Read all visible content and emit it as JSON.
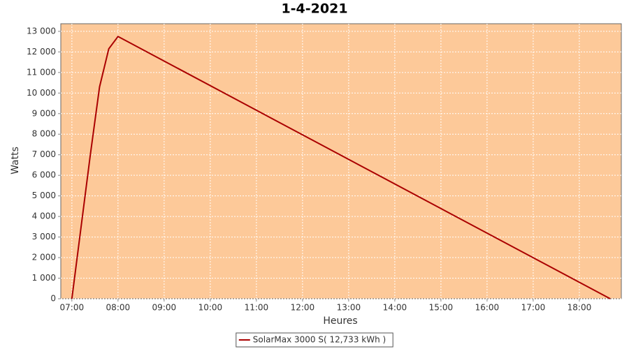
{
  "chart_data": {
    "type": "line",
    "title": "1-4-2021",
    "x_label": "Heures",
    "y_label": "Watts",
    "x": [
      7.0,
      7.4,
      7.6,
      7.8,
      8.0,
      18.67
    ],
    "series": [
      {
        "name": "SolarMax 3000 S( 12,733 kWh )",
        "color": "#aa0000",
        "values": [
          0,
          7000,
          10300,
          12150,
          12750,
          0
        ]
      }
    ],
    "xlim": [
      6.76,
      18.91
    ],
    "xticks": [
      {
        "value": 7,
        "label": "07:00"
      },
      {
        "value": 8,
        "label": "08:00"
      },
      {
        "value": 9,
        "label": "09:00"
      },
      {
        "value": 10,
        "label": "10:00"
      },
      {
        "value": 11,
        "label": "11:00"
      },
      {
        "value": 12,
        "label": "12:00"
      },
      {
        "value": 13,
        "label": "13:00"
      },
      {
        "value": 14,
        "label": "14:00"
      },
      {
        "value": 15,
        "label": "15:00"
      },
      {
        "value": 16,
        "label": "16:00"
      },
      {
        "value": 17,
        "label": "17:00"
      },
      {
        "value": 18,
        "label": "18:00"
      }
    ],
    "ylim": [
      0,
      13370
    ],
    "yticks": [
      0,
      {
        "value": 1000,
        "label": "1 000"
      },
      {
        "value": 2000,
        "label": "2 000"
      },
      {
        "value": 3000,
        "label": "3 000"
      },
      {
        "value": 4000,
        "label": "4 000"
      },
      {
        "value": 5000,
        "label": "5 000"
      },
      {
        "value": 6000,
        "label": "6 000"
      },
      {
        "value": 7000,
        "label": "7 000"
      },
      {
        "value": 8000,
        "label": "8 000"
      },
      {
        "value": 9000,
        "label": "9 000"
      },
      {
        "value": 10000,
        "label": "10 000"
      },
      {
        "value": 11000,
        "label": "11 000"
      },
      {
        "value": 12000,
        "label": "12 000"
      },
      {
        "value": 13000,
        "label": "13 000"
      }
    ],
    "grid": true,
    "legend": "bottom",
    "plot_background": "#fdc999"
  }
}
